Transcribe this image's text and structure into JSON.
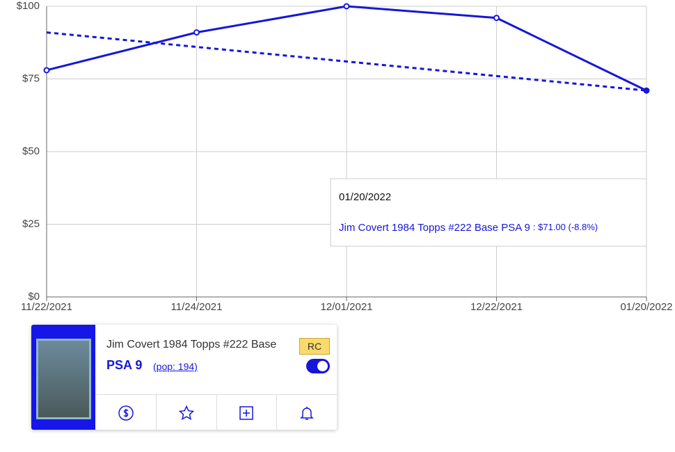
{
  "chart_data": {
    "type": "line",
    "categories": [
      "11/22/2021",
      "11/24/2021",
      "12/01/2021",
      "12/22/2021",
      "01/20/2022"
    ],
    "series": [
      {
        "name": "Jim Covert 1984 Topps #222 Base PSA 9",
        "color": "#1616d8",
        "values": [
          78,
          91,
          100,
          96,
          71
        ],
        "style": "solid"
      },
      {
        "color": "#1616d8",
        "values": [
          91,
          86,
          81,
          76,
          71
        ],
        "style": "dashed"
      }
    ],
    "ylim": [
      0,
      100
    ],
    "yticks": [
      {
        "value": 0,
        "label": "$0"
      },
      {
        "value": 25,
        "label": "$25"
      },
      {
        "value": 50,
        "label": "$50"
      },
      {
        "value": 75,
        "label": "$75"
      },
      {
        "value": 100,
        "label": "$100"
      }
    ],
    "grid": true,
    "tooltip": {
      "text": ": $71.00 (-8.8%)"
    }
  },
  "card": {
    "title": "Jim Covert 1984 Topps #222 Base",
    "grade": "PSA 9",
    "pop": "(pop: 194)",
    "badge": "RC"
  }
}
